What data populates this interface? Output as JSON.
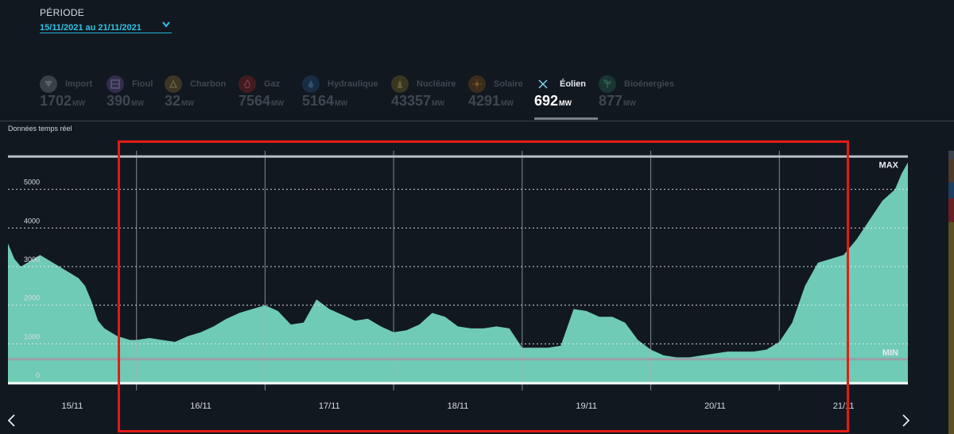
{
  "period": {
    "label": "PÉRIODE",
    "value": "15/11/2021 au 21/11/2021"
  },
  "tabs": [
    {
      "key": "import",
      "name": "Import",
      "value": "1702",
      "unit": "MW",
      "icon": "import-icon",
      "color": "#5a6168",
      "active": false
    },
    {
      "key": "fioul",
      "name": "Fioul",
      "value": "390",
      "unit": "MW",
      "icon": "fioul-icon",
      "color": "#4c3f6e",
      "active": false
    },
    {
      "key": "charbon",
      "name": "Charbon",
      "value": "32",
      "unit": "MW",
      "icon": "charbon-icon",
      "color": "#5e4f2a",
      "active": false
    },
    {
      "key": "gaz",
      "name": "Gaz",
      "value": "7564",
      "unit": "MW",
      "icon": "gaz-icon",
      "color": "#6a1f22",
      "active": false
    },
    {
      "key": "hydraulique",
      "name": "Hydraulique",
      "value": "5164",
      "unit": "MW",
      "icon": "hydraulique-icon",
      "color": "#1e3d63",
      "active": false
    },
    {
      "key": "nucleaire",
      "name": "Nucléaire",
      "value": "43357",
      "unit": "MW",
      "icon": "nucleaire-icon",
      "color": "#5b5120",
      "active": false
    },
    {
      "key": "solaire",
      "name": "Solaire",
      "value": "4291",
      "unit": "MW",
      "icon": "solaire-icon",
      "color": "#5e3e18",
      "active": false
    },
    {
      "key": "eolien",
      "name": "Éolien",
      "value": "692",
      "unit": "MW",
      "icon": "eolien-icon",
      "color": "#7fd0ee",
      "active": true
    },
    {
      "key": "bioenergies",
      "name": "Bioénergies",
      "value": "877",
      "unit": "MW",
      "icon": "bioenergies-icon",
      "color": "#1f4f42",
      "active": false
    }
  ],
  "realtime_label": "Données temps réel",
  "chart_data": {
    "type": "area",
    "x_tick_labels": [
      "15/11",
      "16/11",
      "17/11",
      "18/11",
      "19/11",
      "20/11",
      "21/11"
    ],
    "y_tick_labels": [
      "0",
      "1000",
      "2000",
      "3000",
      "4000",
      "5000"
    ],
    "ylim": [
      0,
      6000
    ],
    "x_range_days": [
      0,
      7
    ],
    "max_line": {
      "label": "MAX",
      "value": 5850
    },
    "min_line": {
      "label": "MIN",
      "value": 600
    },
    "fill_color": "#6fcbb5",
    "grid": "dotted horizontal, solid vertical at day boundaries",
    "series": [
      {
        "x": [
          0,
          0.05,
          0.1,
          0.15,
          0.2,
          0.25,
          0.3,
          0.35,
          0.4,
          0.45,
          0.5,
          0.55,
          0.6,
          0.65,
          0.7,
          0.75,
          0.8,
          0.85,
          0.9,
          0.95,
          1.0,
          1.1,
          1.2,
          1.3,
          1.4,
          1.5,
          1.6,
          1.7,
          1.8,
          1.9,
          2.0,
          2.1,
          2.2,
          2.3,
          2.4,
          2.5,
          2.6,
          2.7,
          2.8,
          2.9,
          3.0,
          3.1,
          3.2,
          3.3,
          3.4,
          3.5,
          3.6,
          3.7,
          3.8,
          3.9,
          4.0,
          4.1,
          4.2,
          4.3,
          4.4,
          4.5,
          4.6,
          4.7,
          4.8,
          4.9,
          5.0,
          5.1,
          5.2,
          5.3,
          5.4,
          5.5,
          5.6,
          5.7,
          5.8,
          5.9,
          6.0,
          6.1,
          6.2,
          6.3,
          6.4,
          6.5,
          6.6,
          6.7,
          6.8,
          6.9,
          6.95,
          7.0
        ],
        "y": [
          3600,
          3200,
          3000,
          3100,
          3200,
          3300,
          3200,
          3100,
          3000,
          2900,
          2800,
          2700,
          2500,
          2100,
          1600,
          1400,
          1300,
          1200,
          1150,
          1100,
          1100,
          1150,
          1100,
          1050,
          1200,
          1300,
          1450,
          1650,
          1800,
          1900,
          2000,
          1850,
          1500,
          1550,
          2150,
          1900,
          1750,
          1600,
          1650,
          1450,
          1300,
          1350,
          1500,
          1800,
          1700,
          1450,
          1400,
          1400,
          1450,
          1400,
          900,
          900,
          900,
          950,
          1900,
          1850,
          1700,
          1700,
          1550,
          1100,
          850,
          700,
          650,
          650,
          700,
          750,
          800,
          800,
          800,
          850,
          1050,
          1550,
          2500,
          3100,
          3200,
          3300,
          3700,
          4200,
          4700,
          5000,
          5400,
          5700
        ]
      }
    ]
  }
}
